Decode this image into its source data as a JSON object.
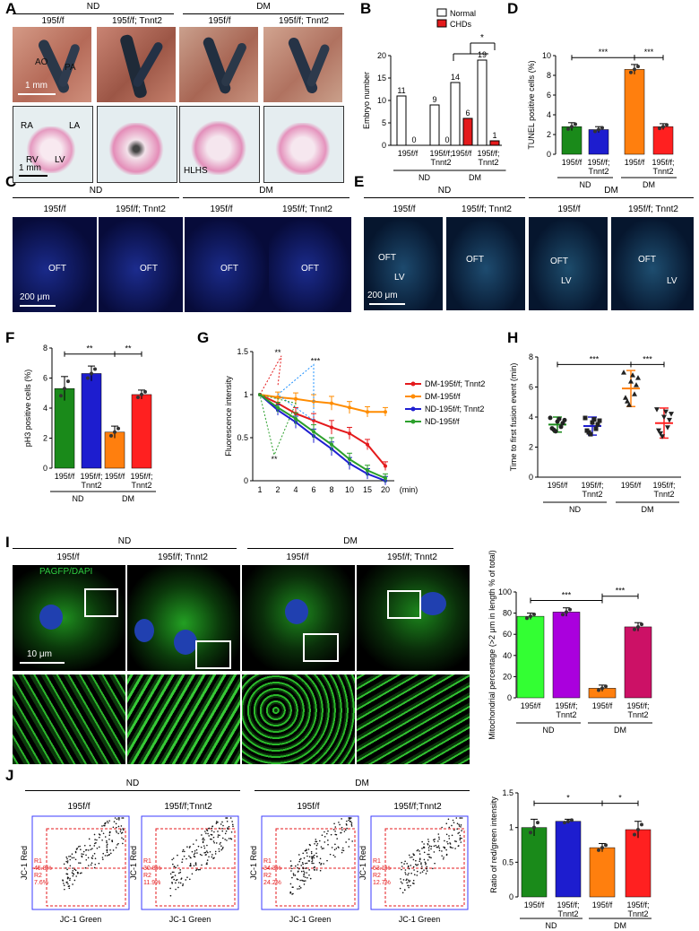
{
  "panel_letters": {
    "A": "A",
    "B": "B",
    "C": "C",
    "D": "D",
    "E": "E",
    "F": "F",
    "G": "G",
    "H": "H",
    "I": "I",
    "J": "J"
  },
  "groups": {
    "nd": "ND",
    "dm": "DM"
  },
  "genotypes": {
    "ctrl": "195f/f",
    "ko": "195f/f; Tnnt2",
    "ctrl_j": "195f/f",
    "ko_j": "195f/f;Tnnt2"
  },
  "panel_A": {
    "ao": "AO",
    "pa": "PA",
    "ra": "RA",
    "la": "LA",
    "rv": "RV",
    "lv": "LV",
    "hlhs": "HLHS",
    "scale_top": "1 mm",
    "scale_bottom": "1 mm"
  },
  "panel_C": {
    "oft": "OFT",
    "scale": "200 μm"
  },
  "panel_E": {
    "oft": "OFT",
    "lv": "LV",
    "scale": "200 μm"
  },
  "panel_I": {
    "stain": "PAGFP/DAPI",
    "scale": "10 μm"
  },
  "panel_J": {
    "r1": "R1",
    "r2": "R2",
    "xlab": "JC-1 Green",
    "ylab": "JC-1 Red",
    "pct": [
      "45.8%",
      "7.6%",
      "30.8%",
      "11.9%",
      "34.3%",
      "24.2%",
      "53.1%",
      "12.7%"
    ]
  },
  "chart_data": [
    {
      "panel": "B",
      "type": "bar",
      "ylabel": "Embryo number",
      "ylim": [
        0,
        20
      ],
      "yticks": [
        0,
        5,
        10,
        15,
        20
      ],
      "categories": [
        "195f/f",
        "195f/f; Tnnt2",
        "195f/f",
        "195f/f; Tnnt2"
      ],
      "groups": [
        "ND",
        "DM"
      ],
      "series": [
        {
          "name": "Normal",
          "values": [
            11,
            9,
            14,
            19
          ],
          "color": "#ffffff"
        },
        {
          "name": "CHDs",
          "values": [
            0,
            0,
            6,
            1
          ],
          "color": "#e41a1c"
        }
      ],
      "legend": "top-right",
      "annotation": "*"
    },
    {
      "panel": "D",
      "type": "bar",
      "ylabel": "TUNEL positive cells (%)",
      "ylim": [
        0,
        10
      ],
      "yticks": [
        0,
        2,
        4,
        6,
        8,
        10
      ],
      "categories": [
        "195f/f",
        "195f/f; Tnnt2",
        "195f/f",
        "195f/f; Tnnt2"
      ],
      "groups": [
        "ND",
        "DM"
      ],
      "values": [
        2.8,
        2.5,
        8.6,
        2.8
      ],
      "errors": [
        0.4,
        0.3,
        0.5,
        0.3
      ],
      "colors": [
        "#1a8a1a",
        "#1d1dcf",
        "#ff7f0e",
        "#ff2020"
      ],
      "significance": [
        "***",
        "***"
      ]
    },
    {
      "panel": "F",
      "type": "bar",
      "ylabel": "pH3 positive cells (%)",
      "ylim": [
        0,
        8
      ],
      "yticks": [
        0,
        2,
        4,
        6,
        8
      ],
      "categories": [
        "195f/f",
        "195f/f; Tnnt2",
        "195f/f",
        "195f/f; Tnnt2"
      ],
      "groups": [
        "ND",
        "DM"
      ],
      "values": [
        5.3,
        6.3,
        2.4,
        4.9
      ],
      "errors": [
        0.8,
        0.5,
        0.4,
        0.3
      ],
      "colors": [
        "#1a8a1a",
        "#1d1dcf",
        "#ff7f0e",
        "#ff2020"
      ],
      "significance": [
        "**",
        "**"
      ]
    },
    {
      "panel": "G",
      "type": "line",
      "ylabel": "Fluorescence intensity",
      "xlabel": "(min)",
      "ylim": [
        0,
        1.5
      ],
      "yticks": [
        0,
        0.5,
        1,
        1.5
      ],
      "x": [
        1,
        2,
        4,
        6,
        8,
        10,
        15,
        20
      ],
      "series": [
        {
          "name": "DM-195f/f; Tnnt2",
          "color": "#e41a1c",
          "values": [
            1,
            0.9,
            0.78,
            0.7,
            0.62,
            0.55,
            0.42,
            0.17
          ]
        },
        {
          "name": "DM-195f/f",
          "color": "#ff8c00",
          "values": [
            1,
            0.97,
            0.95,
            0.92,
            0.9,
            0.85,
            0.8,
            0.8
          ]
        },
        {
          "name": "ND-195f/f; Tnnt2",
          "color": "#1f1fd1",
          "values": [
            1,
            0.82,
            0.68,
            0.52,
            0.37,
            0.2,
            0.08,
            0.0
          ]
        },
        {
          "name": "ND-195f/f",
          "color": "#2ca02c",
          "values": [
            1,
            0.85,
            0.72,
            0.57,
            0.42,
            0.25,
            0.12,
            0.03
          ]
        }
      ],
      "errors": [
        0,
        0.06,
        0.07,
        0.08,
        0.08,
        0.07,
        0.06,
        0.05
      ],
      "significance": [
        "**",
        "***",
        "**"
      ],
      "legend": "right"
    },
    {
      "panel": "H",
      "type": "scatter",
      "ylabel": "Time to first fusion event (min)",
      "ylim": [
        0,
        8
      ],
      "yticks": [
        0,
        2,
        4,
        6,
        8
      ],
      "categories": [
        "195f/f",
        "195f/f; Tnnt2",
        "195f/f",
        "195f/f; Tnnt2"
      ],
      "groups": [
        "ND",
        "DM"
      ],
      "means": [
        3.5,
        3.4,
        5.9,
        3.6
      ],
      "errors": [
        0.5,
        0.6,
        1.2,
        1.0
      ],
      "colors": [
        "#1a8a1a",
        "#1d1dcf",
        "#ff7f0e",
        "#ff2020"
      ],
      "significance": [
        "***",
        "***"
      ]
    },
    {
      "panel": "I",
      "type": "bar",
      "ylabel": "Mitochondrial percentage (>2 μm in length % of total)",
      "ylim": [
        0,
        100
      ],
      "yticks": [
        0,
        20,
        40,
        60,
        80,
        100
      ],
      "categories": [
        "195f/f",
        "195f/f; Tnnt2",
        "195f/f",
        "195f/f; Tnnt2"
      ],
      "groups": [
        "ND",
        "DM"
      ],
      "values": [
        77,
        81,
        9,
        67
      ],
      "errors": [
        3,
        4,
        3,
        4
      ],
      "colors": [
        "#33ff33",
        "#aa00dd",
        "#ff7f0e",
        "#cc1166"
      ],
      "significance": [
        "***",
        "***"
      ]
    },
    {
      "panel": "J",
      "type": "bar",
      "ylabel": "Ratio of red/green intensity",
      "ylim": [
        0,
        1.5
      ],
      "yticks": [
        0,
        0.5,
        1,
        1.5
      ],
      "categories": [
        "195f/f",
        "195f/f; Tnnt2",
        "195f/f",
        "195f/f; Tnnt2"
      ],
      "groups": [
        "ND",
        "DM"
      ],
      "values": [
        1.0,
        1.09,
        0.71,
        0.97
      ],
      "errors": [
        0.12,
        0.03,
        0.06,
        0.12
      ],
      "colors": [
        "#1a8a1a",
        "#1d1dcf",
        "#ff7f0e",
        "#ff2020"
      ],
      "significance": [
        "*",
        "*"
      ]
    }
  ]
}
